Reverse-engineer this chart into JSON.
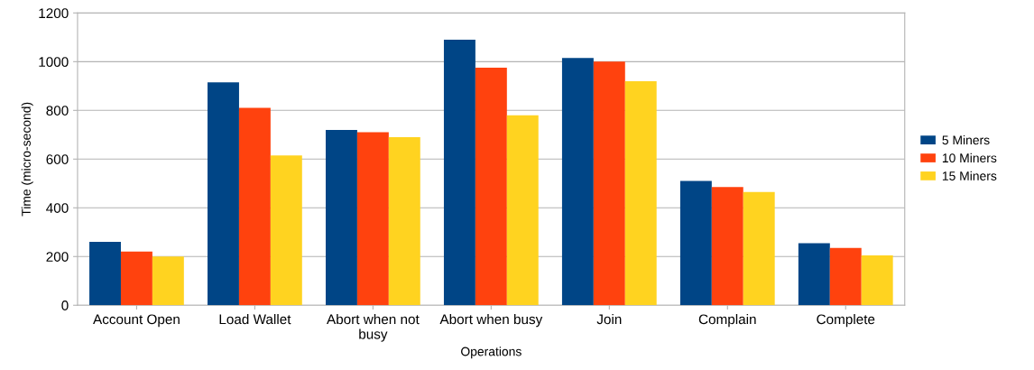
{
  "chart_data": {
    "type": "bar",
    "xlabel": "Operations",
    "ylabel": "Time (micro-second)",
    "categories": [
      "Account Open",
      "Load Wallet",
      "Abort when not\nbusy",
      "Abort when busy",
      "Join",
      "Complain",
      "Complete"
    ],
    "series": [
      {
        "name": "5 Miners",
        "color": "#004586",
        "values": [
          260,
          915,
          720,
          1090,
          1015,
          510,
          255
        ]
      },
      {
        "name": "10 Miners",
        "color": "#ff420e",
        "values": [
          220,
          810,
          710,
          975,
          1000,
          485,
          235
        ]
      },
      {
        "name": "15 Miners",
        "color": "#ffd320",
        "values": [
          200,
          615,
          690,
          780,
          920,
          465,
          205
        ]
      }
    ],
    "ylim": [
      0,
      1200
    ],
    "yticks": [
      0,
      200,
      400,
      600,
      800,
      1000,
      1200
    ],
    "grid": "y",
    "legend": "right"
  }
}
